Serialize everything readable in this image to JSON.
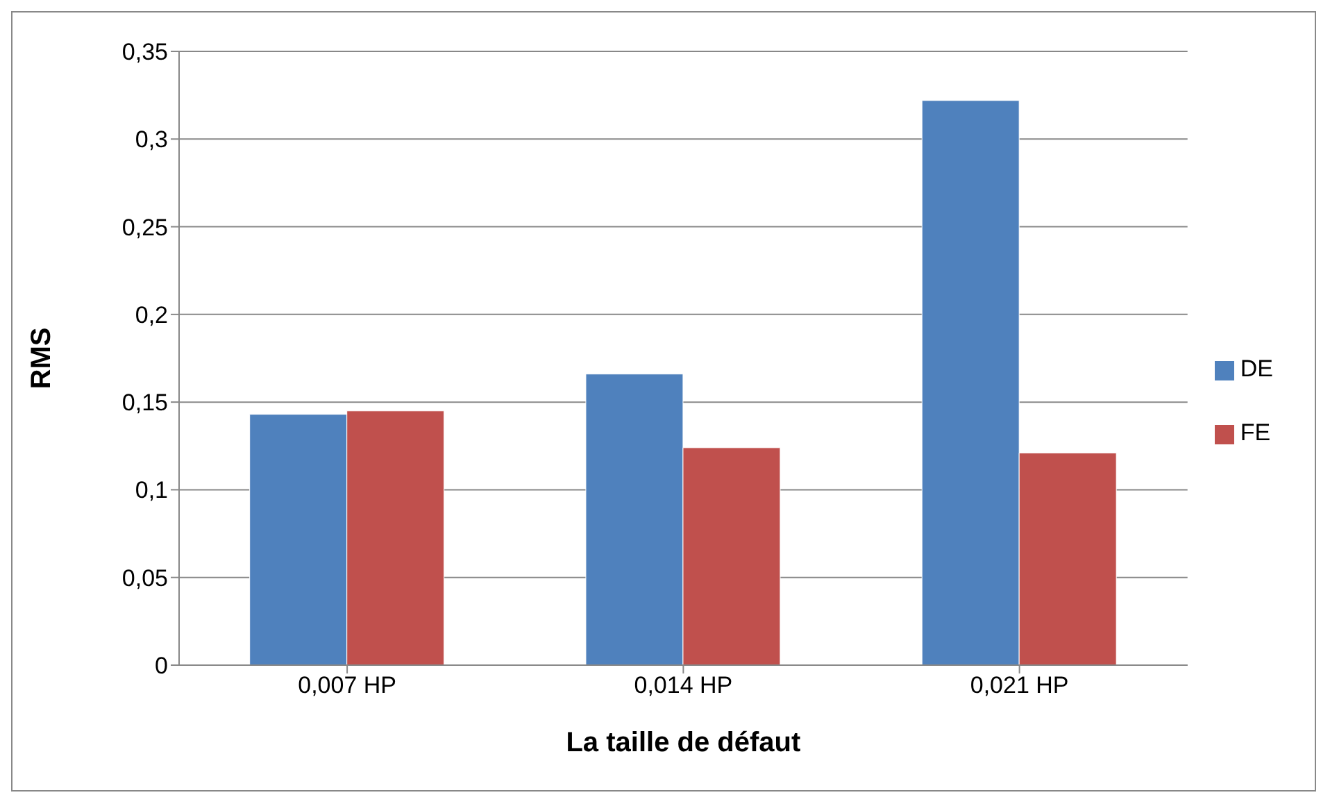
{
  "chart_data": {
    "type": "bar",
    "xlabel": "La taille de défaut",
    "ylabel": "RMS",
    "categories": [
      "0,007 HP",
      "0,014 HP",
      "0,021 HP"
    ],
    "series": [
      {
        "name": "DE",
        "color": "#4f81bd",
        "values": [
          0.143,
          0.166,
          0.322
        ]
      },
      {
        "name": "FE",
        "color": "#c0504d",
        "values": [
          0.145,
          0.124,
          0.121
        ]
      }
    ],
    "ylim": [
      0,
      0.35
    ],
    "yticks": [
      {
        "value": 0,
        "label": "0"
      },
      {
        "value": 0.05,
        "label": "0,05"
      },
      {
        "value": 0.1,
        "label": "0,1"
      },
      {
        "value": 0.15,
        "label": "0,15"
      },
      {
        "value": 0.2,
        "label": "0,2"
      },
      {
        "value": 0.25,
        "label": "0,25"
      },
      {
        "value": 0.3,
        "label": "0,3"
      },
      {
        "value": 0.35,
        "label": "0,35"
      }
    ],
    "grid": "y",
    "legend": "right"
  }
}
